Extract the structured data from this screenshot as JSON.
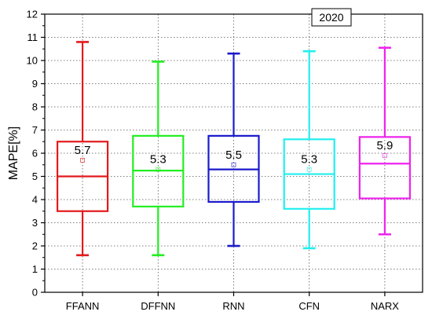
{
  "chart_data": {
    "type": "box",
    "badge": "2020",
    "ylabel": "MAPE[%]",
    "xlabel": "",
    "ylim": [
      0,
      12
    ],
    "yticks": [
      0,
      1,
      2,
      3,
      4,
      5,
      6,
      7,
      8,
      9,
      10,
      11,
      12
    ],
    "grid": true,
    "categories": [
      "FFANN",
      "DFFNN",
      "RNN",
      "CFN",
      "NARX"
    ],
    "boxes": [
      {
        "name": "FFANN",
        "min": 1.6,
        "q1": 3.5,
        "median": 5.0,
        "q3": 6.5,
        "max": 10.8,
        "mean": 5.7,
        "mean_label": "5.7",
        "color": "#e31a1c"
      },
      {
        "name": "DFFNN",
        "min": 1.6,
        "q1": 3.7,
        "median": 5.25,
        "q3": 6.75,
        "max": 9.95,
        "mean": 5.3,
        "mean_label": "5.3",
        "color": "#22ee22"
      },
      {
        "name": "RNN",
        "min": 2.0,
        "q1": 3.9,
        "median": 5.3,
        "q3": 6.75,
        "max": 10.3,
        "mean": 5.5,
        "mean_label": "5.5",
        "color": "#1a1acc"
      },
      {
        "name": "CFN",
        "min": 1.9,
        "q1": 3.6,
        "median": 5.1,
        "q3": 6.6,
        "max": 10.4,
        "mean": 5.3,
        "mean_label": "5.3",
        "color": "#22eeee"
      },
      {
        "name": "NARX",
        "min": 2.5,
        "q1": 4.05,
        "median": 5.55,
        "q3": 6.7,
        "max": 10.55,
        "mean": 5.9,
        "mean_label": "5.9",
        "color": "#ee22ee"
      }
    ]
  }
}
